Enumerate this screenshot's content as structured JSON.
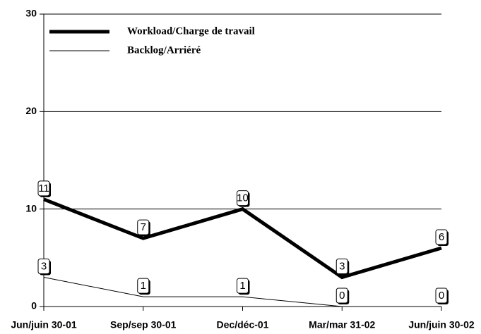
{
  "chart_data": {
    "type": "line",
    "categories": [
      "Jun/juin 30-01",
      "Sep/sep 30-01",
      "Dec/déc-01",
      "Mar/mar 31-02",
      "Jun/juin 30-02"
    ],
    "series": [
      {
        "name": "Workload/Charge de travail",
        "color": "#000000",
        "values": [
          11,
          7,
          10,
          3,
          6
        ]
      },
      {
        "name": "Backlog/Arriéré",
        "color": "#000000",
        "values": [
          3,
          1,
          1,
          0,
          0
        ]
      }
    ],
    "ylim": [
      0,
      30
    ],
    "yticks": [
      0,
      10,
      20,
      30
    ],
    "grid": true,
    "legend": "top-left"
  }
}
